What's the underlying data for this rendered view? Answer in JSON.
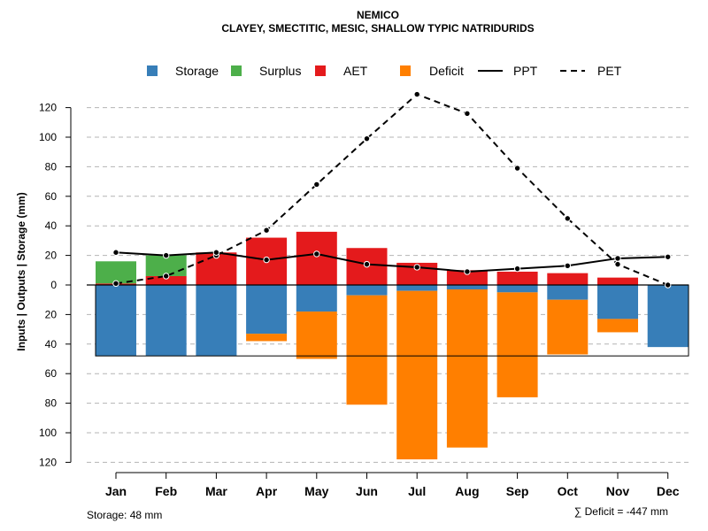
{
  "chart_data": {
    "type": "bar",
    "title": "NEMICO",
    "subtitle": "CLAYEY, SMECTITIC, MESIC, SHALLOW TYPIC NATRIDURIDS",
    "ylabel": "Inputs | Outputs | Storage    (mm)",
    "ylim": [
      -120,
      130
    ],
    "yticks": [
      120,
      100,
      80,
      60,
      40,
      20,
      0,
      20,
      40,
      60,
      80,
      100,
      120
    ],
    "categories": [
      "Jan",
      "Feb",
      "Mar",
      "Apr",
      "May",
      "Jun",
      "Jul",
      "Aug",
      "Sep",
      "Oct",
      "Nov",
      "Dec"
    ],
    "legend": [
      {
        "key": "storage",
        "label": "Storage",
        "kind": "box",
        "color": "#377EB8"
      },
      {
        "key": "surplus",
        "label": "Surplus",
        "kind": "box",
        "color": "#4DAF4A"
      },
      {
        "key": "aet",
        "label": "AET",
        "kind": "box",
        "color": "#E41A1C"
      },
      {
        "key": "deficit",
        "label": "Deficit",
        "kind": "box",
        "color": "#FF7F00"
      },
      {
        "key": "ppt",
        "label": "PPT",
        "kind": "solid",
        "color": "#000000"
      },
      {
        "key": "pet",
        "label": "PET",
        "kind": "dashed",
        "color": "#000000"
      }
    ],
    "series": [
      {
        "name": "AET",
        "values": [
          1,
          6,
          22,
          32,
          36,
          25,
          15,
          10,
          9,
          8,
          5,
          0
        ]
      },
      {
        "name": "Surplus",
        "values": [
          15,
          14,
          0,
          0,
          0,
          0,
          0,
          0,
          0,
          0,
          0,
          0
        ]
      },
      {
        "name": "Storage",
        "values": [
          48,
          48,
          48,
          33,
          18,
          7,
          4,
          3,
          5,
          10,
          23,
          42
        ]
      },
      {
        "name": "Deficit",
        "values": [
          0,
          0,
          0,
          5,
          32,
          74,
          114,
          107,
          71,
          37,
          9,
          0
        ]
      },
      {
        "name": "PPT",
        "values": [
          22,
          20,
          22,
          17,
          21,
          14,
          12,
          9,
          11,
          13,
          18,
          19
        ]
      },
      {
        "name": "PET",
        "values": [
          1,
          6,
          20,
          37,
          68,
          99,
          129,
          116,
          79,
          45,
          14,
          0
        ]
      }
    ],
    "storage_capacity": 48,
    "storage_note": "Storage: 48 mm",
    "deficit_note": "∑ Deficit = -447 mm"
  }
}
